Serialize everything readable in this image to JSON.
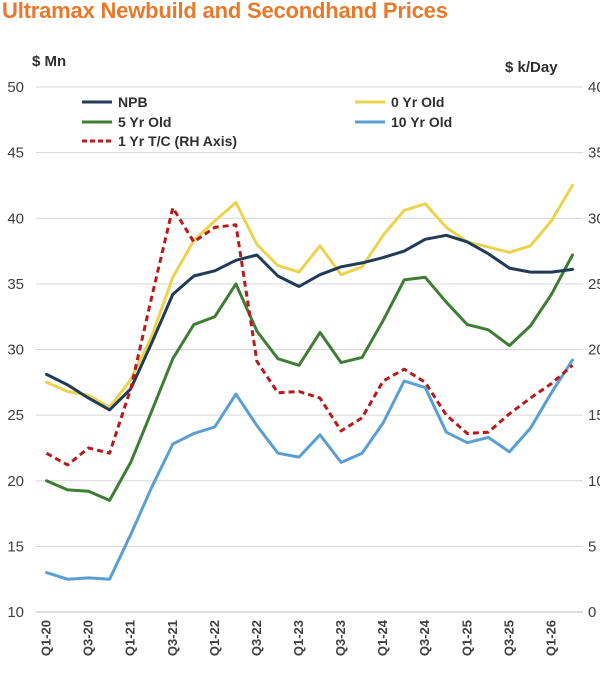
{
  "chart_data": {
    "type": "line",
    "title": "Ultramax Newbuild and Secondhand Prices",
    "left_axis_unit": "$ Mn",
    "right_axis_unit": "$ k/Day",
    "ylim_left": [
      10,
      50
    ],
    "ylim_right": [
      0,
      40
    ],
    "yticks_left": [
      "10",
      "15",
      "20",
      "25",
      "30",
      "35",
      "40",
      "45",
      "50"
    ],
    "yticks_right": [
      "0",
      "5",
      "10",
      "15",
      "20",
      "25",
      "30",
      "35",
      "40"
    ],
    "grid": "horizontal",
    "legend_position": "top",
    "x": [
      "Q1-20",
      "Q2-20",
      "Q3-20",
      "Q4-20",
      "Q1-21",
      "Q2-21",
      "Q3-21",
      "Q4-21",
      "Q1-22",
      "Q2-22",
      "Q3-22",
      "Q4-22",
      "Q1-23",
      "Q2-23",
      "Q3-23",
      "Q4-23",
      "Q1-24",
      "Q2-24",
      "Q3-24",
      "Q4-24",
      "Q1-25",
      "Q2-25",
      "Q3-25",
      "Q4-25",
      "Q1-26",
      "Q2-26"
    ],
    "x_tick_labels": [
      "Q1-20",
      "Q3-20",
      "Q1-21",
      "Q3-21",
      "Q1-22",
      "Q3-22",
      "Q1-23",
      "Q3-23",
      "Q1-24",
      "Q3-24",
      "Q1-25",
      "Q3-25",
      "Q1-26"
    ],
    "series": [
      {
        "name": "NPB",
        "axis": "left",
        "color": "#1f3b57",
        "dash": "",
        "values": [
          28.1,
          27.3,
          26.3,
          25.4,
          27.0,
          30.5,
          34.2,
          35.6,
          36.0,
          36.8,
          37.2,
          35.6,
          34.8,
          35.7,
          36.3,
          36.6,
          37.0,
          37.5,
          38.4,
          38.7,
          38.2,
          37.3,
          36.2,
          35.9,
          35.9,
          36.1
        ]
      },
      {
        "name": "0 Yr Old",
        "axis": "left",
        "color": "#ecd34d",
        "dash": "",
        "values": [
          27.5,
          26.8,
          26.5,
          25.6,
          27.7,
          31.0,
          35.5,
          38.3,
          39.8,
          41.2,
          38.0,
          36.4,
          35.9,
          37.9,
          35.7,
          36.3,
          38.7,
          40.6,
          41.1,
          39.3,
          38.2,
          37.8,
          37.4,
          37.9,
          39.8,
          42.5
        ]
      },
      {
        "name": "5 Yr Old",
        "axis": "left",
        "color": "#3f7d35",
        "dash": "",
        "values": [
          20.0,
          19.3,
          19.2,
          18.5,
          21.4,
          25.3,
          29.3,
          31.9,
          32.5,
          35.0,
          31.4,
          29.3,
          28.8,
          31.3,
          29.0,
          29.4,
          32.2,
          35.3,
          35.5,
          33.6,
          31.9,
          31.5,
          30.3,
          31.8,
          34.2,
          37.2
        ]
      },
      {
        "name": "10 Yr Old",
        "axis": "left",
        "color": "#5a9fd4",
        "dash": "",
        "values": [
          13.0,
          12.5,
          12.6,
          12.5,
          15.9,
          19.5,
          22.8,
          23.6,
          24.1,
          26.6,
          24.2,
          22.1,
          21.8,
          23.5,
          21.4,
          22.1,
          24.4,
          27.6,
          27.1,
          23.7,
          22.9,
          23.3,
          22.2,
          24.0,
          26.7,
          29.2
        ]
      },
      {
        "name": "1 Yr T/C (RH Axis)",
        "axis": "right",
        "color": "#b71c1c",
        "dash": "6,4",
        "values": [
          12.1,
          11.2,
          12.5,
          12.1,
          17.0,
          24.0,
          30.8,
          28.2,
          29.3,
          29.5,
          19.1,
          16.7,
          16.8,
          16.3,
          13.8,
          14.8,
          17.6,
          18.5,
          17.5,
          15.0,
          13.6,
          13.7,
          15.1,
          16.3,
          17.4,
          18.8
        ]
      }
    ]
  }
}
